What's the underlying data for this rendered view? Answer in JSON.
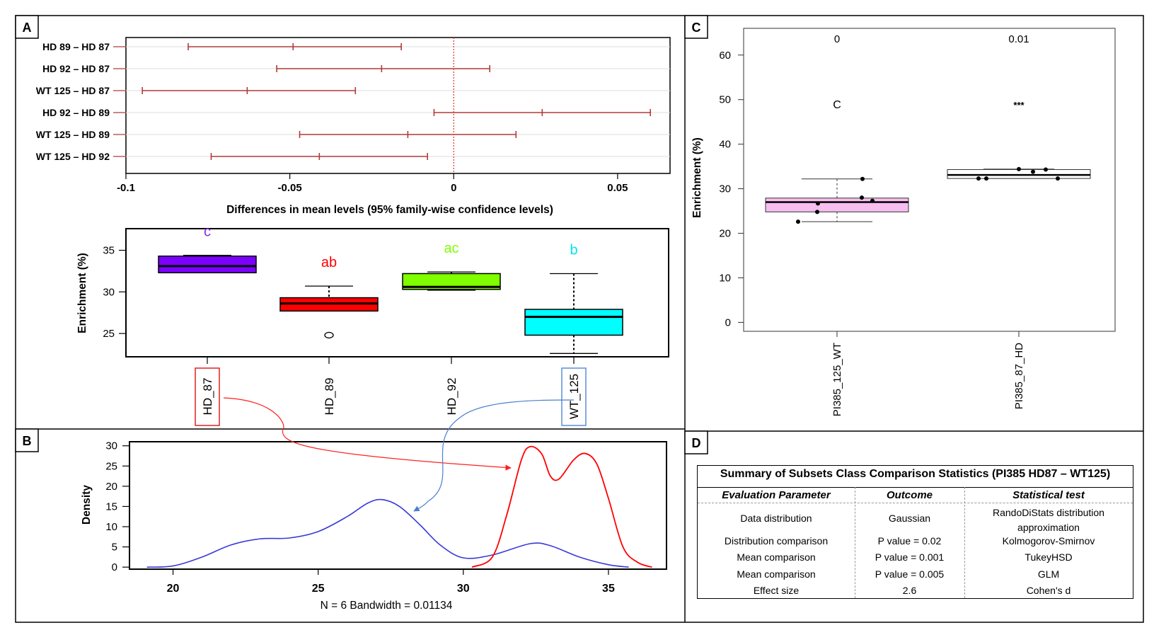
{
  "panel_labels": {
    "a": "A",
    "b": "B",
    "c": "C",
    "d": "D"
  },
  "chart_data": [
    {
      "panel": "A-top",
      "type": "interval",
      "comparisons": [
        "HD 89 – HD 87",
        "HD 92 – HD 87",
        "WT 125 – HD 87",
        "HD 92 – HD 89",
        "WT 125 – HD 89",
        "WT 125 – HD 92"
      ],
      "intervals": [
        {
          "lwr": -0.081,
          "diff": -0.049,
          "upr": -0.016
        },
        {
          "lwr": -0.054,
          "diff": -0.022,
          "upr": 0.011
        },
        {
          "lwr": -0.095,
          "diff": -0.063,
          "upr": -0.03
        },
        {
          "lwr": -0.006,
          "diff": 0.027,
          "upr": 0.06
        },
        {
          "lwr": -0.047,
          "diff": -0.014,
          "upr": 0.019
        },
        {
          "lwr": -0.074,
          "diff": -0.041,
          "upr": -0.008
        }
      ],
      "xlim": [
        -0.1,
        0.066
      ],
      "xticks": [
        -0.1,
        -0.05,
        0,
        0.05
      ],
      "xtick_labels": [
        "-0.1",
        "-0.05",
        "0",
        "0.05"
      ],
      "xlabel": "Differences in mean levels (95% family-wise confidence levels)",
      "color": "#b03a3a"
    },
    {
      "panel": "A-bottom",
      "type": "box",
      "ylabel": "Enrichment (%)",
      "ylim": [
        22.2,
        37.6
      ],
      "yticks": [
        25,
        30,
        35
      ],
      "ytick_labels": [
        "25",
        "30",
        "35"
      ],
      "groups": [
        {
          "name": "HD_87",
          "min": 32.3,
          "q1": 32.3,
          "median": 33.1,
          "q3": 34.3,
          "max": 34.4,
          "outliers": [],
          "letter": "c",
          "fill": "#7d00ff",
          "letter_color": "#8a2be2",
          "boxed": true,
          "box_color": "#e02020"
        },
        {
          "name": "HD_89",
          "min": 27.7,
          "q1": 27.7,
          "median": 28.6,
          "q3": 29.3,
          "max": 30.7,
          "outliers": [
            24.8
          ],
          "letter": "ab",
          "fill": "#ff0000",
          "letter_color": "#ff0000",
          "boxed": false
        },
        {
          "name": "HD_92",
          "min": 30.2,
          "q1": 30.3,
          "median": 30.6,
          "q3": 32.2,
          "max": 32.4,
          "outliers": [],
          "letter": "ac",
          "fill": "#7fff00",
          "letter_color": "#7fff00",
          "boxed": false
        },
        {
          "name": "WT_125",
          "min": 22.6,
          "q1": 24.8,
          "median": 27.0,
          "q3": 27.9,
          "max": 32.2,
          "outliers": [],
          "letter": "b",
          "fill": "#00ffff",
          "letter_color": "#00e5ee",
          "boxed": true,
          "box_color": "#5b8fd6"
        }
      ]
    },
    {
      "panel": "B",
      "type": "line",
      "ylabel": "Density",
      "xlim": [
        18.5,
        37.0
      ],
      "ylim": [
        -0.5,
        31
      ],
      "xticks": [
        20,
        25,
        30,
        35
      ],
      "xtick_labels": [
        "20",
        "25",
        "30",
        "35"
      ],
      "yticks": [
        0,
        5,
        10,
        15,
        20,
        25,
        30
      ],
      "ytick_labels": [
        "0",
        "5",
        "10",
        "15",
        "20",
        "25",
        "30"
      ],
      "xlabel": "N = 6 Bandwidth = 0.01134",
      "series": [
        {
          "color": "#3a3ad6",
          "x": [
            19.1,
            20.0,
            21.0,
            22.0,
            23.0,
            24.0,
            25.0,
            26.0,
            26.7,
            27.2,
            27.8,
            28.5,
            29.2,
            30.0,
            31.0,
            32.3,
            33.0,
            34.0,
            35.0,
            35.7
          ],
          "y": [
            0,
            0.3,
            2.5,
            5.5,
            7.0,
            7.2,
            8.8,
            12.5,
            15.8,
            16.7,
            15.0,
            10.5,
            5.5,
            2.3,
            3.0,
            5.8,
            5.3,
            2.5,
            0.6,
            0
          ]
        },
        {
          "color": "#ff0000",
          "x": [
            30.3,
            31.0,
            31.5,
            32.0,
            32.3,
            32.7,
            33.0,
            33.3,
            33.8,
            34.2,
            34.6,
            35.0,
            35.5,
            36.0,
            36.5
          ],
          "y": [
            0,
            2.5,
            13.0,
            26.5,
            29.8,
            28.0,
            22.5,
            21.8,
            26.5,
            28.1,
            25.5,
            17.0,
            5.0,
            1.2,
            0
          ]
        }
      ]
    },
    {
      "panel": "C",
      "type": "box",
      "ylabel": "Enrichment (%)",
      "ylim": [
        -2.0,
        66.0
      ],
      "yticks": [
        0,
        10,
        20,
        30,
        40,
        50,
        60
      ],
      "ytick_labels": [
        "0",
        "10",
        "20",
        "30",
        "40",
        "50",
        "60"
      ],
      "groups": [
        {
          "name": "PI385_125_WT",
          "min": 22.6,
          "q1": 24.8,
          "median": 27.0,
          "q3": 27.9,
          "max": 32.2,
          "fill": "#f6bff0",
          "points": [
            22.6,
            24.8,
            26.7,
            27.3,
            28.0,
            32.2
          ],
          "top_label": "0",
          "mid_label": "C"
        },
        {
          "name": "PI385_87_HD",
          "min": 32.3,
          "q1": 32.3,
          "median": 33.1,
          "q3": 34.3,
          "max": 34.4,
          "fill": "#ffffff",
          "points": [
            32.3,
            32.3,
            32.3,
            33.8,
            34.3,
            34.4
          ],
          "top_label": "0.01",
          "mid_label": "***"
        }
      ]
    }
  ],
  "table": {
    "title": "Summary of Subsets Class Comparison Statistics (PI385 HD87 – WT125)",
    "headers": [
      "Evaluation Parameter",
      "Outcome",
      "Statistical test"
    ],
    "rows": [
      [
        "Data distribution",
        "Gaussian",
        "RandoDiStats distribution approximation"
      ],
      [
        "Distribution comparison",
        "P value = 0.02",
        "Kolmogorov-Smirnov"
      ],
      [
        "Mean comparison",
        "P value = 0.001",
        "TukeyHSD"
      ],
      [
        "Mean comparison",
        "P value = 0.005",
        "GLM"
      ],
      [
        "Effect size",
        "2.6",
        "Cohen's d"
      ]
    ]
  }
}
